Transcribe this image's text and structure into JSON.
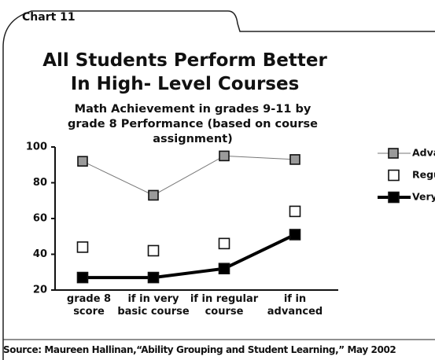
{
  "chart_data": {
    "type": "line",
    "tab_label": "Chart 11",
    "title": "All Students Perform Better In High- Level Courses",
    "subtitle": "Math Achievement in grades 9-11 by grade 8 Performance  (based on course assignment)",
    "categories": [
      "grade 8 score",
      "if in very basic course",
      "if in regular course",
      "if in advanced"
    ],
    "series": [
      {
        "name": "Advanced",
        "color": "#9a9a9a",
        "values": [
          92,
          73,
          95,
          93
        ]
      },
      {
        "name": "Regular",
        "color": "#ffffff",
        "values": [
          44,
          42,
          46,
          64
        ]
      },
      {
        "name": "Very Basic",
        "color": "#000000",
        "values": [
          27,
          27,
          32,
          51
        ]
      }
    ],
    "ylim": [
      20,
      100
    ],
    "yticks": [
      20,
      40,
      60,
      80,
      100
    ],
    "legend": "right",
    "source": "Source: Maureen Hallinan,“Ability Grouping and Student Learning,” May 2002"
  }
}
